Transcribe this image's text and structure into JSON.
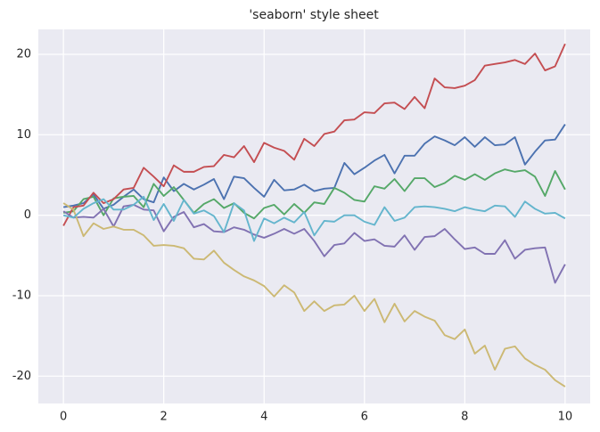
{
  "chart_data": {
    "type": "line",
    "title": "'seaborn' style sheet",
    "x": [
      0,
      0.2,
      0.4,
      0.6,
      0.8,
      1,
      1.2,
      1.4,
      1.6,
      1.8,
      2,
      2.2,
      2.4,
      2.6,
      2.8,
      3,
      3.2,
      3.4,
      3.6,
      3.8,
      4,
      4.2,
      4.4,
      4.6,
      4.8,
      5,
      5.2,
      5.4,
      5.6,
      5.8,
      6,
      6.2,
      6.4,
      6.6,
      6.8,
      7,
      7.2,
      7.4,
      7.6,
      7.8,
      8,
      8.2,
      8.4,
      8.6,
      8.8,
      9,
      9.2,
      9.4,
      9.6,
      9.8,
      10
    ],
    "series": [
      {
        "color": "#4C72B0",
        "values": [
          1.0,
          1.2,
          1.5,
          2.6,
          0.8,
          1.3,
          2.3,
          3.2,
          2.0,
          1.6,
          4.7,
          3.0,
          3.9,
          3.2,
          3.8,
          4.5,
          2.0,
          4.8,
          4.6,
          3.4,
          2.3,
          4.4,
          3.1,
          3.2,
          3.8,
          3.0,
          3.3,
          3.4,
          6.5,
          5.1,
          5.9,
          6.8,
          7.5,
          5.2,
          7.4,
          7.4,
          8.9,
          9.8,
          9.3,
          8.7,
          9.7,
          8.5,
          9.7,
          8.7,
          8.8,
          9.7,
          6.3,
          7.9,
          9.3,
          9.4,
          11.3
        ]
      },
      {
        "color": "#55A868",
        "values": [
          0.3,
          0.5,
          2.0,
          2.3,
          0.0,
          2.1,
          2.3,
          2.4,
          1.0,
          3.9,
          2.4,
          3.5,
          1.9,
          0.3,
          1.4,
          2.0,
          0.9,
          1.5,
          0.3,
          -0.4,
          0.9,
          1.3,
          0.1,
          1.4,
          0.3,
          1.6,
          1.4,
          3.4,
          2.8,
          1.9,
          1.7,
          3.6,
          3.3,
          4.5,
          3.0,
          4.6,
          4.6,
          3.5,
          4.0,
          4.9,
          4.4,
          5.1,
          4.4,
          5.2,
          5.7,
          5.4,
          5.6,
          4.8,
          2.4,
          5.5,
          3.2
        ]
      },
      {
        "color": "#C44E52",
        "values": [
          -1.3,
          1.0,
          1.2,
          2.8,
          1.5,
          2.0,
          3.2,
          3.4,
          5.9,
          4.8,
          3.6,
          6.2,
          5.4,
          5.4,
          6.0,
          6.1,
          7.5,
          7.2,
          8.6,
          6.6,
          9.0,
          8.4,
          8.0,
          6.9,
          9.5,
          8.6,
          10.1,
          10.4,
          11.8,
          11.9,
          12.8,
          12.7,
          13.9,
          14.0,
          13.2,
          14.7,
          13.3,
          17.0,
          15.9,
          15.8,
          16.1,
          16.8,
          18.6,
          18.8,
          19.0,
          19.3,
          18.8,
          20.1,
          18.0,
          18.5,
          21.3
        ]
      },
      {
        "color": "#8172B2",
        "values": [
          0.5,
          -0.3,
          -0.2,
          -0.3,
          0.8,
          -1.4,
          1.1,
          1.3,
          0.7,
          0.6,
          -2.0,
          -0.2,
          0.4,
          -1.5,
          -1.1,
          -2.0,
          -2.1,
          -1.5,
          -1.8,
          -2.4,
          -2.8,
          -2.3,
          -1.7,
          -2.3,
          -1.7,
          -3.2,
          -5.1,
          -3.7,
          -3.5,
          -2.2,
          -3.2,
          -3.0,
          -3.8,
          -3.9,
          -2.5,
          -4.3,
          -2.7,
          -2.6,
          -1.7,
          -3.0,
          -4.2,
          -4.0,
          -4.8,
          -4.8,
          -3.1,
          -5.4,
          -4.3,
          -4.1,
          -4.0,
          -8.4,
          -6.1
        ]
      },
      {
        "color": "#CCB974",
        "values": [
          1.5,
          0.7,
          -2.6,
          -1.0,
          -1.7,
          -1.4,
          -1.8,
          -1.8,
          -2.5,
          -3.8,
          -3.7,
          -3.8,
          -4.1,
          -5.4,
          -5.5,
          -4.4,
          -5.9,
          -6.8,
          -7.6,
          -8.1,
          -8.8,
          -10.1,
          -8.7,
          -9.6,
          -11.9,
          -10.7,
          -11.9,
          -11.2,
          -11.1,
          -10.0,
          -11.9,
          -10.4,
          -13.3,
          -11.0,
          -13.2,
          -11.9,
          -12.6,
          -13.1,
          -14.9,
          -15.4,
          -14.2,
          -17.2,
          -16.2,
          -19.2,
          -16.6,
          -16.3,
          -17.8,
          -18.6,
          -19.2,
          -20.5,
          -21.3
        ]
      },
      {
        "color": "#64B5CD",
        "values": [
          0.0,
          -0.3,
          0.8,
          1.5,
          2.0,
          0.7,
          0.7,
          1.3,
          2.3,
          -0.6,
          1.4,
          -0.7,
          1.9,
          0.2,
          0.6,
          -0.1,
          -2.1,
          1.5,
          0.6,
          -3.2,
          -0.4,
          -1.0,
          -0.3,
          -0.9,
          0.4,
          -2.5,
          -0.7,
          -0.8,
          0.0,
          0.0,
          -0.8,
          -1.2,
          1.0,
          -0.7,
          -0.3,
          1.0,
          1.1,
          1.0,
          0.8,
          0.5,
          1.0,
          0.7,
          0.5,
          1.2,
          1.1,
          -0.2,
          1.7,
          0.8,
          0.2,
          0.3,
          -0.4
        ]
      }
    ],
    "xlim": [
      -0.5,
      10.5
    ],
    "ylim": [
      -23.4,
      23.1
    ],
    "xticks": [
      0,
      2,
      4,
      6,
      8,
      10
    ],
    "yticks": [
      -20,
      -10,
      0,
      10,
      20
    ],
    "grid": true,
    "background": "#EAEAF2"
  }
}
